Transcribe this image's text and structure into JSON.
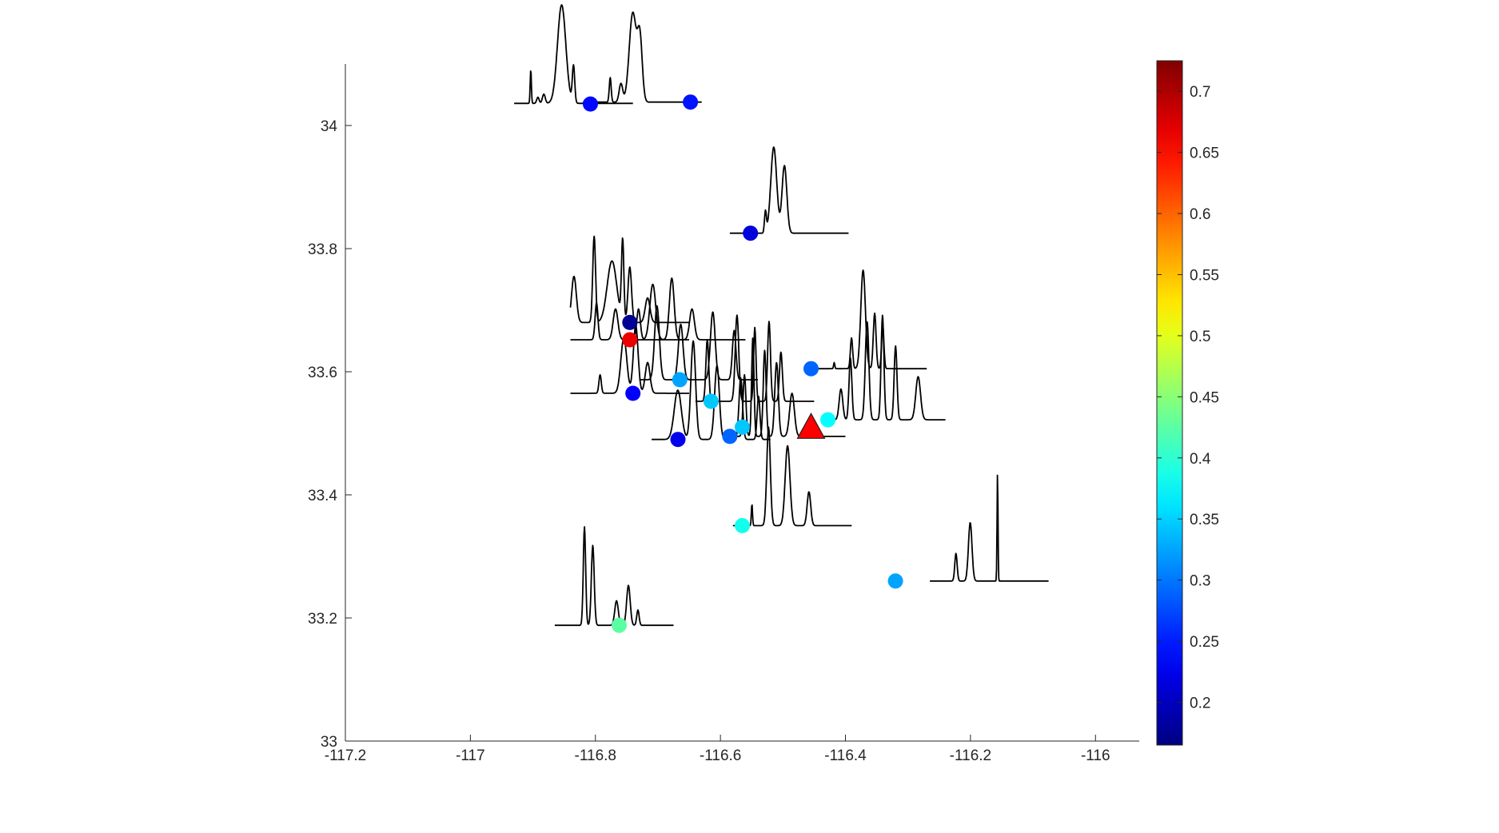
{
  "chart_data": {
    "type": "scatter",
    "title": "",
    "xlabel": "",
    "ylabel": "",
    "xlim": [
      -117.2,
      -115.93
    ],
    "ylim": [
      33.0,
      34.1
    ],
    "xticks": [
      -117.2,
      -117,
      -116.8,
      -116.6,
      -116.4,
      -116.2,
      -116
    ],
    "xtick_labels": [
      "-117.2",
      "-117",
      "-116.8",
      "-116.6",
      "-116.4",
      "-116.2",
      "-116"
    ],
    "yticks": [
      33,
      33.2,
      33.4,
      33.6,
      33.8,
      34
    ],
    "ytick_labels": [
      "33",
      "33.2",
      "33.4",
      "33.6",
      "33.8",
      "34"
    ],
    "grid": false,
    "colorbar": {
      "colormap": "jet",
      "clim": [
        0.165,
        0.725
      ],
      "ticks": [
        0.2,
        0.25,
        0.3,
        0.35,
        0.4,
        0.45,
        0.5,
        0.55,
        0.6,
        0.65,
        0.7
      ],
      "tick_labels": [
        "0.2",
        "0.25",
        "0.3",
        "0.35",
        "0.4",
        "0.45",
        "0.5",
        "0.55",
        "0.6",
        "0.65",
        "0.7"
      ],
      "location": "right"
    },
    "epicenter": {
      "lon": -116.455,
      "lat": 33.51,
      "marker": "triangle",
      "color": "#ff0000"
    },
    "stations": [
      {
        "lon": -116.808,
        "lat": 34.035,
        "value": 0.24
      },
      {
        "lon": -116.648,
        "lat": 34.038,
        "value": 0.245
      },
      {
        "lon": -116.552,
        "lat": 33.825,
        "value": 0.215
      },
      {
        "lon": -116.745,
        "lat": 33.68,
        "value": 0.175
      },
      {
        "lon": -116.745,
        "lat": 33.652,
        "value": 0.665
      },
      {
        "lon": -116.455,
        "lat": 33.605,
        "value": 0.29
      },
      {
        "lon": -116.665,
        "lat": 33.587,
        "value": 0.325
      },
      {
        "lon": -116.74,
        "lat": 33.565,
        "value": 0.235
      },
      {
        "lon": -116.615,
        "lat": 33.552,
        "value": 0.345
      },
      {
        "lon": -116.565,
        "lat": 33.51,
        "value": 0.345
      },
      {
        "lon": -116.585,
        "lat": 33.495,
        "value": 0.29
      },
      {
        "lon": -116.668,
        "lat": 33.49,
        "value": 0.225
      },
      {
        "lon": -116.428,
        "lat": 33.522,
        "value": 0.375
      },
      {
        "lon": -116.565,
        "lat": 33.35,
        "value": 0.385
      },
      {
        "lon": -116.32,
        "lat": 33.26,
        "value": 0.325
      },
      {
        "lon": -116.762,
        "lat": 33.188,
        "value": 0.425
      }
    ],
    "waveforms": [
      {
        "x0": -116.93,
        "x1": -116.74,
        "y": 34.036,
        "height": 0.165,
        "peaks": [
          [
            0.14,
            0.055,
            0.005
          ],
          [
            0.2,
            0.01,
            0.01
          ],
          [
            0.25,
            0.015,
            0.012
          ],
          [
            0.4,
            0.16,
            0.035
          ],
          [
            0.5,
            0.06,
            0.01
          ]
        ]
      },
      {
        "x0": -116.82,
        "x1": -116.63,
        "y": 34.038,
        "height": 0.15,
        "peaks": [
          [
            0.23,
            0.04,
            0.008
          ],
          [
            0.32,
            0.03,
            0.015
          ],
          [
            0.42,
            0.145,
            0.03
          ],
          [
            0.48,
            0.1,
            0.02
          ]
        ]
      },
      {
        "x0": -116.585,
        "x1": -116.395,
        "y": 33.825,
        "height": 0.155,
        "peaks": [
          [
            0.3,
            0.035,
            0.008
          ],
          [
            0.37,
            0.14,
            0.025
          ],
          [
            0.46,
            0.11,
            0.02
          ]
        ]
      },
      {
        "x0": -116.84,
        "x1": -116.65,
        "y": 33.68,
        "height": 0.135,
        "peaks": [
          [
            0.03,
            0.075,
            0.02
          ],
          [
            0.2,
            0.14,
            0.012
          ],
          [
            0.35,
            0.1,
            0.04
          ],
          [
            0.44,
            0.13,
            0.01
          ],
          [
            0.5,
            0.09,
            0.015
          ],
          [
            0.65,
            0.04,
            0.02
          ]
        ]
      },
      {
        "x0": -116.84,
        "x1": -116.65,
        "y": 33.652,
        "height": 0.08,
        "peaks": [
          [
            0.22,
            0.06,
            0.012
          ],
          [
            0.38,
            0.05,
            0.02
          ]
        ]
      },
      {
        "x0": -116.75,
        "x1": -116.56,
        "y": 33.652,
        "height": 0.12,
        "peaks": [
          [
            0.1,
            0.05,
            0.015
          ],
          [
            0.22,
            0.09,
            0.025
          ],
          [
            0.38,
            0.1,
            0.02
          ],
          [
            0.55,
            0.05,
            0.02
          ]
        ]
      },
      {
        "x0": -116.84,
        "x1": -116.65,
        "y": 33.565,
        "height": 0.12,
        "peaks": [
          [
            0.25,
            0.03,
            0.01
          ],
          [
            0.45,
            0.09,
            0.025
          ],
          [
            0.55,
            0.11,
            0.02
          ],
          [
            0.65,
            0.05,
            0.02
          ]
        ]
      },
      {
        "x0": -116.73,
        "x1": -116.54,
        "y": 33.587,
        "height": 0.13,
        "peaks": [
          [
            0.15,
            0.12,
            0.02
          ],
          [
            0.35,
            0.09,
            0.02
          ],
          [
            0.62,
            0.11,
            0.02
          ],
          [
            0.8,
            0.08,
            0.015
          ]
        ]
      },
      {
        "x0": -116.64,
        "x1": -116.45,
        "y": 33.552,
        "height": 0.145,
        "peaks": [
          [
            0.1,
            0.1,
            0.012
          ],
          [
            0.35,
            0.14,
            0.015
          ],
          [
            0.5,
            0.12,
            0.01
          ],
          [
            0.62,
            0.13,
            0.012
          ],
          [
            0.72,
            0.08,
            0.012
          ]
        ]
      },
      {
        "x0": -116.71,
        "x1": -116.52,
        "y": 33.49,
        "height": 0.17,
        "peaks": [
          [
            0.22,
            0.08,
            0.03
          ],
          [
            0.35,
            0.16,
            0.02
          ],
          [
            0.55,
            0.12,
            0.02
          ],
          [
            0.75,
            0.1,
            0.015
          ],
          [
            0.9,
            0.07,
            0.012
          ]
        ]
      },
      {
        "x0": -116.59,
        "x1": -116.4,
        "y": 33.495,
        "height": 0.17,
        "peaks": [
          [
            0.15,
            0.1,
            0.012
          ],
          [
            0.22,
            0.16,
            0.01
          ],
          [
            0.32,
            0.14,
            0.012
          ],
          [
            0.42,
            0.12,
            0.015
          ],
          [
            0.55,
            0.07,
            0.02
          ]
        ]
      },
      {
        "x0": -116.455,
        "x1": -116.27,
        "y": 33.605,
        "height": 0.165,
        "peaks": [
          [
            0.2,
            0.01,
            0.005
          ],
          [
            0.35,
            0.05,
            0.01
          ],
          [
            0.45,
            0.16,
            0.02
          ],
          [
            0.55,
            0.09,
            0.012
          ],
          [
            0.62,
            0.07,
            0.01
          ]
        ]
      },
      {
        "x0": -116.43,
        "x1": -116.24,
        "y": 33.522,
        "height": 0.175,
        "peaks": [
          [
            0.12,
            0.05,
            0.015
          ],
          [
            0.2,
            0.1,
            0.012
          ],
          [
            0.34,
            0.16,
            0.015
          ],
          [
            0.47,
            0.17,
            0.012
          ],
          [
            0.58,
            0.12,
            0.012
          ],
          [
            0.77,
            0.07,
            0.02
          ]
        ]
      },
      {
        "x0": -116.58,
        "x1": -116.39,
        "y": 33.35,
        "height": 0.165,
        "peaks": [
          [
            0.16,
            0.035,
            0.005
          ],
          [
            0.3,
            0.16,
            0.015
          ],
          [
            0.46,
            0.13,
            0.02
          ],
          [
            0.64,
            0.055,
            0.015
          ]
        ]
      },
      {
        "x0": -116.265,
        "x1": -116.075,
        "y": 33.26,
        "height": 0.175,
        "peaks": [
          [
            0.22,
            0.045,
            0.01
          ],
          [
            0.34,
            0.095,
            0.015
          ],
          [
            0.57,
            0.175,
            0.004
          ]
        ]
      },
      {
        "x0": -116.865,
        "x1": -116.675,
        "y": 33.188,
        "height": 0.165,
        "peaks": [
          [
            0.25,
            0.16,
            0.01
          ],
          [
            0.32,
            0.13,
            0.012
          ],
          [
            0.52,
            0.04,
            0.015
          ],
          [
            0.62,
            0.065,
            0.015
          ],
          [
            0.7,
            0.025,
            0.01
          ]
        ]
      }
    ]
  }
}
